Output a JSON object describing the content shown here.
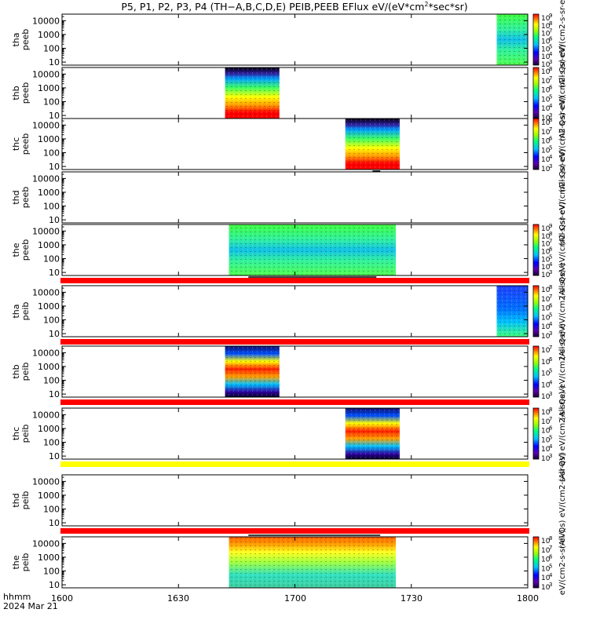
{
  "title_parts": {
    "main": "P5, P1, P2, P3, P4 (TH−A,B,C,D,E) PEIB,PEEB EFlux eV/(eV*cm",
    "sup": "2",
    "tail": "*sec*sr)"
  },
  "x_axis": {
    "ticks": [
      "1600",
      "1630",
      "1700",
      "1730",
      "1800"
    ],
    "label_line1": "hhmm",
    "label_line2": "2024 Mar 21"
  },
  "y_ticks": [
    "10000",
    "1000",
    "100",
    "10"
  ],
  "cb_exponents_9": [
    "9",
    "8",
    "7",
    "6",
    "5",
    "4",
    "3"
  ],
  "cb_exponents_8": [
    "8",
    "7",
    "6",
    "5",
    "4",
    "3"
  ],
  "cb_exponents_7": [
    "7",
    "6",
    "5",
    "4",
    "3"
  ],
  "cb_base": "10",
  "colors": {
    "flag_red": "#ff0000",
    "flag_yellow": "#ffff00",
    "gap": "#000000"
  },
  "chart_data": {
    "type": "heatmap",
    "x_range": [
      "1600",
      "1800"
    ],
    "y_scale": "log",
    "y_range": [
      6,
      30000
    ],
    "panels": [
      {
        "id": "tha-peeb",
        "probe": "tha",
        "product": "peeb",
        "ylabel": [
          "tha",
          "peeb"
        ],
        "cb_label": "(All Qs) eV/(cm2-s-sr-eV)",
        "cb_range": [
          3,
          9
        ],
        "segments": [
          {
            "start": "1752",
            "end": "1800",
            "style": "green"
          }
        ],
        "flag_after": ""
      },
      {
        "id": "thb-peeb",
        "probe": "thb",
        "product": "peeb",
        "ylabel": [
          "thb",
          "peeb"
        ],
        "cb_label": "(All Qs) eV/(cm2-s-sr-eV)",
        "cb_range": [
          3,
          8
        ],
        "segments": [
          {
            "start": "1642",
            "end": "1656",
            "style": "warm"
          }
        ],
        "flag_after": ""
      },
      {
        "id": "thc-peeb",
        "probe": "thc",
        "product": "peeb",
        "ylabel": [
          "thc",
          "peeb"
        ],
        "cb_label": "(All Qs) eV/(cm2-s-sr-eV)",
        "cb_range": [
          3,
          8
        ],
        "segments": [
          {
            "start": "1713",
            "end": "1727",
            "style": "warm"
          }
        ],
        "flag_after": ""
      },
      {
        "id": "thd-peeb",
        "probe": "thd",
        "product": "peeb",
        "ylabel": [
          "thd",
          "peeb"
        ],
        "cb_label": "(All Qs) eV/(cm2-s-sr-eV)",
        "cb_range": null,
        "segments": [],
        "flag_after": ""
      },
      {
        "id": "the-peeb",
        "probe": "the",
        "product": "peeb",
        "ylabel": [
          "the",
          "peeb"
        ],
        "cb_label": "(All Qs) eV/(cm2-s-sr-eV)",
        "cb_range": [
          3,
          9
        ],
        "segments": [
          {
            "start": "1643",
            "end": "1726",
            "style": "green"
          }
        ],
        "flag_after": "red"
      },
      {
        "id": "tha-peib",
        "probe": "tha",
        "product": "peib",
        "ylabel": [
          "tha",
          "peib"
        ],
        "cb_label": "(All Qs) eV/(cm2-s-sr-eV)",
        "cb_range": [
          3,
          8
        ],
        "segments": [
          {
            "start": "1752",
            "end": "1800",
            "style": "blue"
          }
        ],
        "flag_after": "red"
      },
      {
        "id": "thb-peib",
        "probe": "thb",
        "product": "peib",
        "ylabel": [
          "thb",
          "peib"
        ],
        "cb_label": "(All Qs) eV/(cm2-s-sr-eV)",
        "cb_range": [
          3,
          7
        ],
        "segments": [
          {
            "start": "1642",
            "end": "1656",
            "style": "hot"
          }
        ],
        "flag_after": "red"
      },
      {
        "id": "thc-peib",
        "probe": "thc",
        "product": "peib",
        "ylabel": [
          "thc",
          "peib"
        ],
        "cb_label": "(All Qs) eV/(cm2-s-sr-eV)",
        "cb_range": [
          3,
          8
        ],
        "segments": [
          {
            "start": "1713",
            "end": "1727",
            "style": "hot"
          }
        ],
        "flag_after": "yellow"
      },
      {
        "id": "thd-peib",
        "probe": "thd",
        "product": "peib",
        "ylabel": [
          "thd",
          "peib"
        ],
        "cb_label": "(All Qs) eV/(cm2-s-sr-eV)",
        "cb_range": null,
        "segments": [],
        "flag_after": "red"
      },
      {
        "id": "the-peib",
        "probe": "the",
        "product": "peib",
        "ylabel": [
          "the",
          "peib"
        ],
        "cb_label": "eV/(cm2-s-sr-eV)",
        "cb_range": [
          3,
          8
        ],
        "segments": [
          {
            "start": "1643",
            "end": "1726",
            "style": "warmtop"
          }
        ],
        "flag_after": ""
      }
    ]
  }
}
